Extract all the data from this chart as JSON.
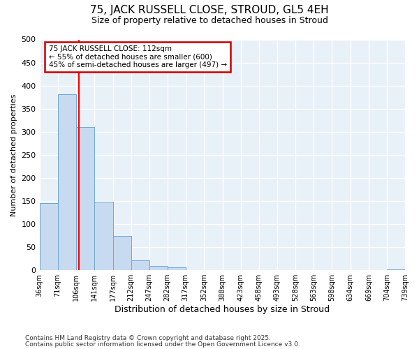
{
  "title_line1": "75, JACK RUSSELL CLOSE, STROUD, GL5 4EH",
  "title_line2": "Size of property relative to detached houses in Stroud",
  "xlabel": "Distribution of detached houses by size in Stroud",
  "ylabel": "Number of detached properties",
  "bar_edges": [
    36,
    71,
    106,
    141,
    177,
    212,
    247,
    282,
    317,
    352,
    388,
    423,
    458,
    493,
    528,
    563,
    598,
    634,
    669,
    704,
    739
  ],
  "bar_heights": [
    145,
    382,
    310,
    148,
    75,
    22,
    10,
    7,
    0,
    0,
    0,
    0,
    0,
    0,
    0,
    0,
    0,
    0,
    0,
    2
  ],
  "bar_color": "#c8daf0",
  "bar_edgecolor": "#6aaad4",
  "red_line_x": 112,
  "ylim": [
    0,
    500
  ],
  "yticks": [
    0,
    50,
    100,
    150,
    200,
    250,
    300,
    350,
    400,
    450,
    500
  ],
  "annotation_line1": "75 JACK RUSSELL CLOSE: 112sqm",
  "annotation_line2": "← 55% of detached houses are smaller (600)",
  "annotation_line3": "45% of semi-detached houses are larger (497) →",
  "annotation_box_color": "#ffffff",
  "annotation_box_edgecolor": "#cc0000",
  "bg_color": "#ffffff",
  "plot_bg_color": "#e8f0f8",
  "grid_color": "#ffffff",
  "footer_line1": "Contains HM Land Registry data © Crown copyright and database right 2025.",
  "footer_line2": "Contains public sector information licensed under the Open Government Licence v3.0.",
  "tick_labels": [
    "36sqm",
    "71sqm",
    "106sqm",
    "141sqm",
    "177sqm",
    "212sqm",
    "247sqm",
    "282sqm",
    "317sqm",
    "352sqm",
    "388sqm",
    "423sqm",
    "458sqm",
    "493sqm",
    "528sqm",
    "563sqm",
    "598sqm",
    "634sqm",
    "669sqm",
    "704sqm",
    "739sqm"
  ]
}
